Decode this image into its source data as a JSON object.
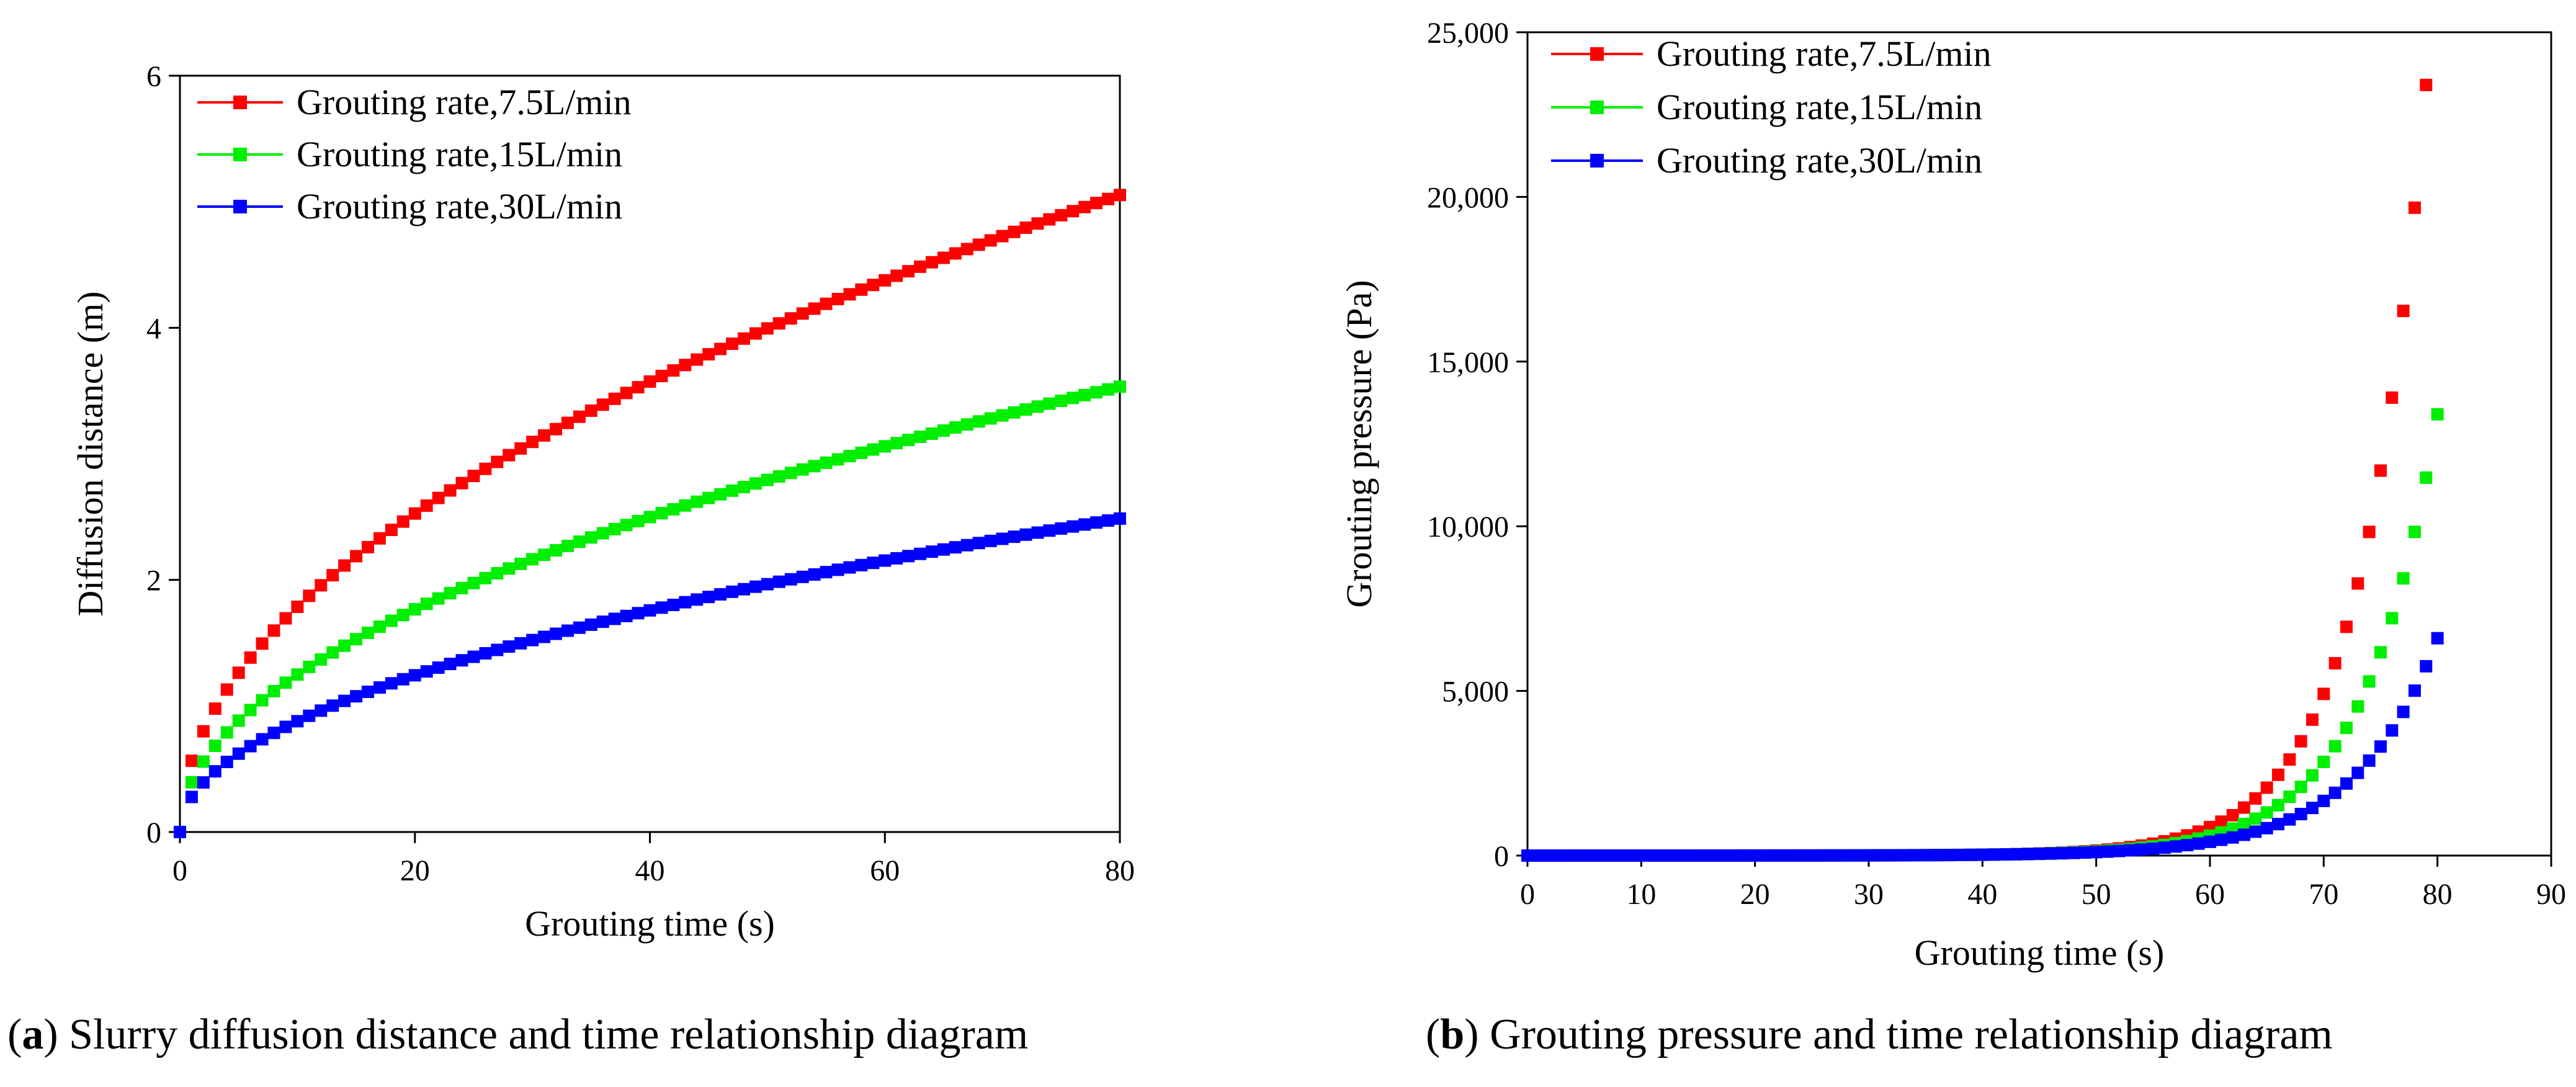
{
  "chart_data": [
    {
      "id": "a",
      "type": "scatter",
      "title": "",
      "xlabel": "Grouting time (s)",
      "ylabel": "Diffusion distance (m)",
      "xlim": [
        0,
        80
      ],
      "ylim": [
        0,
        6
      ],
      "xticks": [
        0,
        20,
        40,
        60,
        80
      ],
      "yticks": [
        0,
        2,
        4,
        6
      ],
      "xtick_labels": [
        "0",
        "20",
        "40",
        "60",
        "80"
      ],
      "ytick_labels": [
        "0",
        "2",
        "4",
        "6"
      ],
      "legend_position": "top-left",
      "series": [
        {
          "name": "Grouting rate,7.5L/min",
          "color": "#ff0000",
          "model": "sqrt",
          "coef": 0.565,
          "x_start": 0,
          "x_end": 80,
          "x_step": 1
        },
        {
          "name": "Grouting rate,15L/min",
          "color": "#00ee00",
          "model": "sqrt",
          "coef": 0.395,
          "x_start": 0,
          "x_end": 80,
          "x_step": 1
        },
        {
          "name": "Grouting rate,30L/min",
          "color": "#0000ff",
          "model": "sqrt",
          "coef": 0.278,
          "x_start": 0,
          "x_end": 80,
          "x_step": 1
        }
      ],
      "endpoints": {
        "7.5L/min": 5.05,
        "15L/min": 3.53,
        "30L/min": 2.49
      }
    },
    {
      "id": "b",
      "type": "scatter",
      "title": "",
      "xlabel": "Grouting time (s)",
      "ylabel": "Grouting pressure (Pa)",
      "xlim": [
        0,
        90
      ],
      "ylim": [
        0,
        25000
      ],
      "xticks": [
        0,
        10,
        20,
        30,
        40,
        50,
        60,
        70,
        80,
        90
      ],
      "yticks": [
        0,
        5000,
        10000,
        15000,
        20000,
        25000
      ],
      "xtick_labels": [
        "0",
        "10",
        "20",
        "30",
        "40",
        "50",
        "60",
        "70",
        "80",
        "90"
      ],
      "ytick_labels": [
        "0",
        "5,000",
        "10,000",
        "15,000",
        "20,000",
        "25,000"
      ],
      "legend_position": "top-left",
      "series": [
        {
          "name": "Grouting rate,7.5L/min",
          "color": "#ff0000",
          "model": "exp",
          "end_value": 23400,
          "rate": 0.1735,
          "x_start": 0,
          "x_end": 79,
          "x_step": 1
        },
        {
          "name": "Grouting rate,15L/min",
          "color": "#00ee00",
          "model": "exp",
          "end_value": 13400,
          "rate": 0.155,
          "x_start": 0,
          "x_end": 80,
          "x_step": 1
        },
        {
          "name": "Grouting rate,30L/min",
          "color": "#0000ff",
          "model": "exp",
          "end_value": 6600,
          "rate": 0.138,
          "x_start": 0,
          "x_end": 80,
          "x_step": 1
        }
      ]
    }
  ],
  "captions": {
    "a_letter": "a",
    "a_text": " Slurry diffusion distance and time relationship diagram",
    "b_letter": "b",
    "b_text": " Grouting pressure and time relationship diagram"
  }
}
